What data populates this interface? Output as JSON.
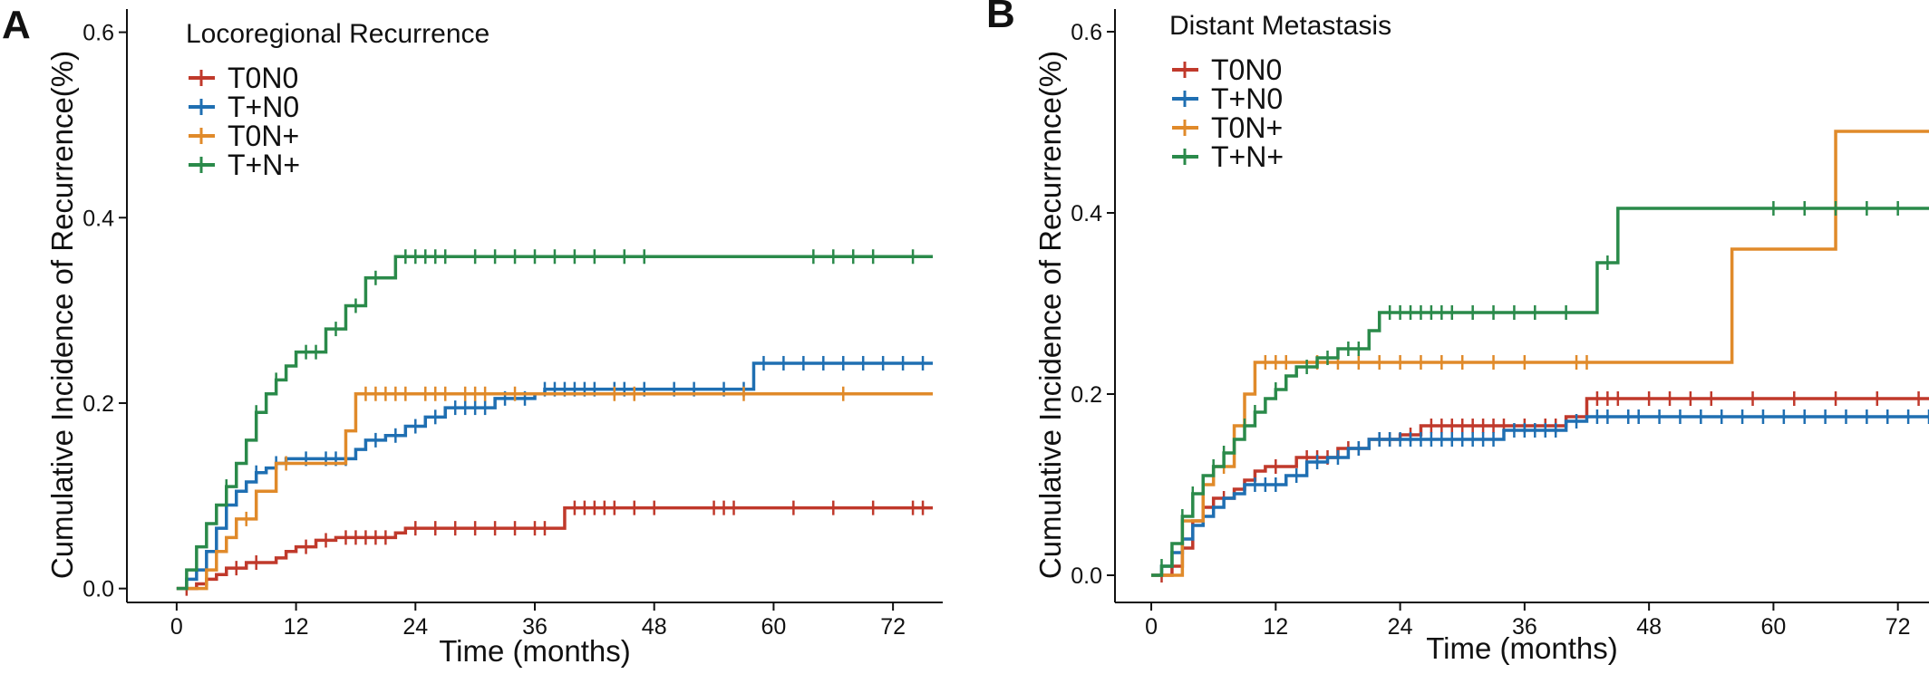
{
  "colors": {
    "T0N0": "#c0392b",
    "T+N0": "#1f6fb2",
    "T0N+": "#e08a2a",
    "T+N+": "#2a8a4a",
    "axis": "#111111"
  },
  "chart_data": [
    {
      "panel_label": "A",
      "type": "line",
      "step": true,
      "title": "Locoregional Recurrence",
      "xlabel": "Time (months)",
      "ylabel": "Cumulative Incidence of Recurrence(%)",
      "xlim": [
        -5,
        77
      ],
      "ylim": [
        -0.015,
        0.625
      ],
      "xticks": [
        0,
        12,
        24,
        36,
        48,
        60,
        72
      ],
      "yticks": [
        0.0,
        0.2,
        0.4,
        0.6
      ],
      "ytick_labels": [
        "0.0",
        "0.2",
        "0.4",
        "0.6"
      ],
      "grid": false,
      "legend_position": "top-left",
      "series": [
        {
          "name": "T0N0",
          "color_key": "T0N0",
          "points": [
            [
              0,
              0
            ],
            [
              2,
              0.005
            ],
            [
              3,
              0.01
            ],
            [
              4,
              0.015
            ],
            [
              5,
              0.022
            ],
            [
              7,
              0.028
            ],
            [
              10,
              0.033
            ],
            [
              11,
              0.04
            ],
            [
              12,
              0.045
            ],
            [
              14,
              0.052
            ],
            [
              16,
              0.055
            ],
            [
              22,
              0.06
            ],
            [
              23,
              0.065
            ],
            [
              39,
              0.087
            ],
            [
              76,
              0.087
            ]
          ],
          "censor_x": [
            1,
            6,
            8,
            13,
            15,
            17,
            18,
            19,
            20,
            21,
            24,
            26,
            28,
            30,
            32,
            34,
            36,
            37,
            40,
            41,
            42,
            43,
            44,
            46,
            48,
            54,
            55,
            56,
            62,
            66,
            70,
            74,
            75
          ]
        },
        {
          "name": "T+N0",
          "color_key": "T+N0",
          "points": [
            [
              0,
              0
            ],
            [
              1,
              0.01
            ],
            [
              2,
              0.02
            ],
            [
              3,
              0.04
            ],
            [
              4,
              0.065
            ],
            [
              5,
              0.09
            ],
            [
              6,
              0.105
            ],
            [
              7,
              0.115
            ],
            [
              8,
              0.125
            ],
            [
              9,
              0.13
            ],
            [
              10,
              0.135
            ],
            [
              11,
              0.14
            ],
            [
              18,
              0.15
            ],
            [
              19,
              0.16
            ],
            [
              21,
              0.165
            ],
            [
              23,
              0.175
            ],
            [
              25,
              0.185
            ],
            [
              27,
              0.195
            ],
            [
              32,
              0.205
            ],
            [
              36,
              0.21
            ],
            [
              37,
              0.215
            ],
            [
              58,
              0.243
            ],
            [
              76,
              0.243
            ]
          ],
          "censor_x": [
            8,
            10,
            13,
            15,
            16,
            17,
            20,
            22,
            24,
            26,
            28,
            29,
            30,
            31,
            33,
            35,
            37,
            38,
            39,
            40,
            41,
            42,
            44,
            45,
            47,
            50,
            52,
            55,
            57,
            59,
            61,
            63,
            65,
            67,
            69,
            71,
            73,
            75
          ]
        },
        {
          "name": "T0N+",
          "color_key": "T0N+",
          "points": [
            [
              0,
              0
            ],
            [
              3,
              0.02
            ],
            [
              4,
              0.04
            ],
            [
              5,
              0.055
            ],
            [
              6,
              0.075
            ],
            [
              8,
              0.105
            ],
            [
              10,
              0.135
            ],
            [
              17,
              0.17
            ],
            [
              18,
              0.21
            ],
            [
              76,
              0.21
            ]
          ],
          "censor_x": [
            7,
            11,
            19,
            20,
            21,
            22,
            23,
            25,
            26,
            27,
            29,
            30,
            31,
            34,
            44,
            46,
            57,
            67
          ]
        },
        {
          "name": "T+N+",
          "color_key": "T+N+",
          "points": [
            [
              0,
              0
            ],
            [
              1,
              0.02
            ],
            [
              2,
              0.045
            ],
            [
              3,
              0.07
            ],
            [
              4,
              0.09
            ],
            [
              5,
              0.11
            ],
            [
              6,
              0.135
            ],
            [
              7,
              0.16
            ],
            [
              8,
              0.19
            ],
            [
              9,
              0.21
            ],
            [
              10,
              0.225
            ],
            [
              11,
              0.24
            ],
            [
              12,
              0.255
            ],
            [
              15,
              0.28
            ],
            [
              17,
              0.305
            ],
            [
              19,
              0.335
            ],
            [
              22,
              0.358
            ],
            [
              76,
              0.358
            ]
          ],
          "censor_x": [
            5,
            8,
            10,
            13,
            14,
            16,
            18,
            20,
            23,
            24,
            25,
            26,
            27,
            30,
            32,
            34,
            36,
            38,
            40,
            42,
            45,
            47,
            64,
            66,
            68,
            70,
            74
          ]
        }
      ]
    },
    {
      "panel_label": "B",
      "type": "line",
      "step": true,
      "title": "Distant Metastasis",
      "xlabel": "Time (months)",
      "ylabel": "Cumulative Incidence of Recurrence(%)",
      "xlim": [
        -3.5,
        75
      ],
      "ylim": [
        -0.03,
        0.625
      ],
      "xticks": [
        0,
        12,
        24,
        36,
        48,
        60,
        72
      ],
      "yticks": [
        0.0,
        0.2,
        0.4,
        0.6
      ],
      "ytick_labels": [
        "0.0",
        "0.2",
        "0.4",
        "0.6"
      ],
      "grid": false,
      "legend_position": "top-left",
      "series": [
        {
          "name": "T0N0",
          "color_key": "T0N0",
          "points": [
            [
              0,
              0
            ],
            [
              2,
              0.01
            ],
            [
              3,
              0.03
            ],
            [
              4,
              0.06
            ],
            [
              5,
              0.075
            ],
            [
              6,
              0.085
            ],
            [
              8,
              0.095
            ],
            [
              9,
              0.105
            ],
            [
              10,
              0.115
            ],
            [
              11,
              0.12
            ],
            [
              14,
              0.13
            ],
            [
              18,
              0.14
            ],
            [
              21,
              0.15
            ],
            [
              24,
              0.155
            ],
            [
              26,
              0.165
            ],
            [
              40,
              0.175
            ],
            [
              42,
              0.195
            ],
            [
              76,
              0.195
            ]
          ],
          "censor_x": [
            1,
            7,
            12,
            15,
            16,
            17,
            19,
            20,
            22,
            23,
            25,
            27,
            28,
            29,
            30,
            31,
            32,
            33,
            34,
            36,
            38,
            39,
            43,
            44,
            45,
            48,
            50,
            52,
            54,
            58,
            62,
            66,
            70,
            74
          ]
        },
        {
          "name": "T+N0",
          "color_key": "T+N0",
          "points": [
            [
              0,
              0
            ],
            [
              1,
              0.01
            ],
            [
              2,
              0.025
            ],
            [
              3,
              0.04
            ],
            [
              4,
              0.055
            ],
            [
              5,
              0.065
            ],
            [
              6,
              0.075
            ],
            [
              7,
              0.085
            ],
            [
              8,
              0.09
            ],
            [
              9,
              0.1
            ],
            [
              13,
              0.11
            ],
            [
              15,
              0.125
            ],
            [
              17,
              0.13
            ],
            [
              19,
              0.14
            ],
            [
              21,
              0.15
            ],
            [
              34,
              0.16
            ],
            [
              40,
              0.17
            ],
            [
              42,
              0.175
            ],
            [
              76,
              0.175
            ]
          ],
          "censor_x": [
            10,
            11,
            12,
            14,
            16,
            18,
            20,
            22,
            23,
            24,
            25,
            26,
            27,
            28,
            29,
            30,
            31,
            32,
            33,
            35,
            36,
            37,
            38,
            39,
            41,
            43,
            44,
            46,
            47,
            49,
            51,
            53,
            55,
            57,
            59,
            61,
            63,
            65,
            67,
            69,
            71,
            73,
            75
          ]
        },
        {
          "name": "T0N+",
          "color_key": "T0N+",
          "points": [
            [
              0,
              0
            ],
            [
              3,
              0.06
            ],
            [
              5,
              0.1
            ],
            [
              6,
              0.12
            ],
            [
              8,
              0.165
            ],
            [
              9,
              0.2
            ],
            [
              10,
              0.235
            ],
            [
              56,
              0.36
            ],
            [
              66,
              0.49
            ],
            [
              76,
              0.49
            ]
          ],
          "censor_x": [
            7,
            11,
            12,
            13,
            16,
            18,
            20,
            22,
            24,
            26,
            28,
            30,
            33,
            36,
            41,
            42
          ]
        },
        {
          "name": "T+N+",
          "color_key": "T+N+",
          "points": [
            [
              0,
              0
            ],
            [
              1,
              0.01
            ],
            [
              2,
              0.035
            ],
            [
              3,
              0.065
            ],
            [
              4,
              0.09
            ],
            [
              5,
              0.11
            ],
            [
              6,
              0.12
            ],
            [
              7,
              0.135
            ],
            [
              8,
              0.15
            ],
            [
              9,
              0.165
            ],
            [
              10,
              0.18
            ],
            [
              11,
              0.195
            ],
            [
              12,
              0.205
            ],
            [
              13,
              0.22
            ],
            [
              14,
              0.23
            ],
            [
              16,
              0.24
            ],
            [
              18,
              0.25
            ],
            [
              21,
              0.27
            ],
            [
              22,
              0.29
            ],
            [
              43,
              0.345
            ],
            [
              45,
              0.405
            ],
            [
              76,
              0.405
            ]
          ],
          "censor_x": [
            1,
            3,
            4,
            6,
            7,
            9,
            10,
            12,
            15,
            17,
            19,
            20,
            23,
            24,
            25,
            26,
            27,
            28,
            29,
            31,
            33,
            35,
            37,
            40,
            44,
            60,
            63,
            66,
            69,
            72
          ]
        }
      ]
    }
  ]
}
